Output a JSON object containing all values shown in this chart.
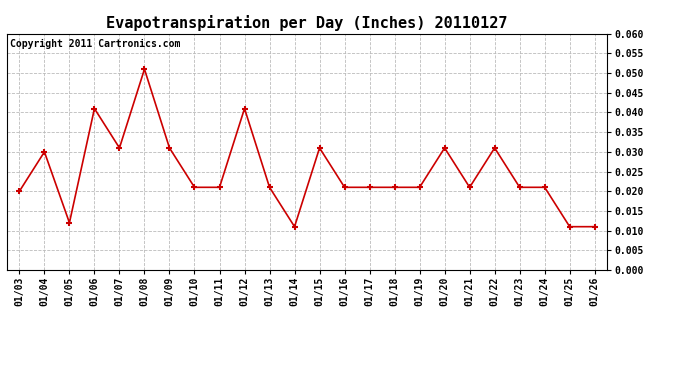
{
  "title": "Evapotranspiration per Day (Inches) 20110127",
  "copyright_text": "Copyright 2011 Cartronics.com",
  "x_labels": [
    "01/03",
    "01/04",
    "01/05",
    "01/06",
    "01/07",
    "01/08",
    "01/09",
    "01/10",
    "01/11",
    "01/12",
    "01/13",
    "01/14",
    "01/15",
    "01/16",
    "01/17",
    "01/18",
    "01/19",
    "01/20",
    "01/21",
    "01/22",
    "01/23",
    "01/24",
    "01/25",
    "01/26"
  ],
  "y_values": [
    0.02,
    0.03,
    0.012,
    0.041,
    0.031,
    0.051,
    0.031,
    0.021,
    0.021,
    0.041,
    0.021,
    0.011,
    0.031,
    0.021,
    0.021,
    0.021,
    0.021,
    0.031,
    0.021,
    0.031,
    0.021,
    0.021,
    0.011,
    0.011
  ],
  "line_color": "#cc0000",
  "marker": "+",
  "marker_size": 5,
  "ylim": [
    0.0,
    0.06
  ],
  "ytick_step": 0.005,
  "background_color": "#ffffff",
  "grid_color": "#bbbbbb",
  "title_fontsize": 11,
  "copyright_fontsize": 7,
  "tick_fontsize": 7,
  "line_width": 1.2
}
